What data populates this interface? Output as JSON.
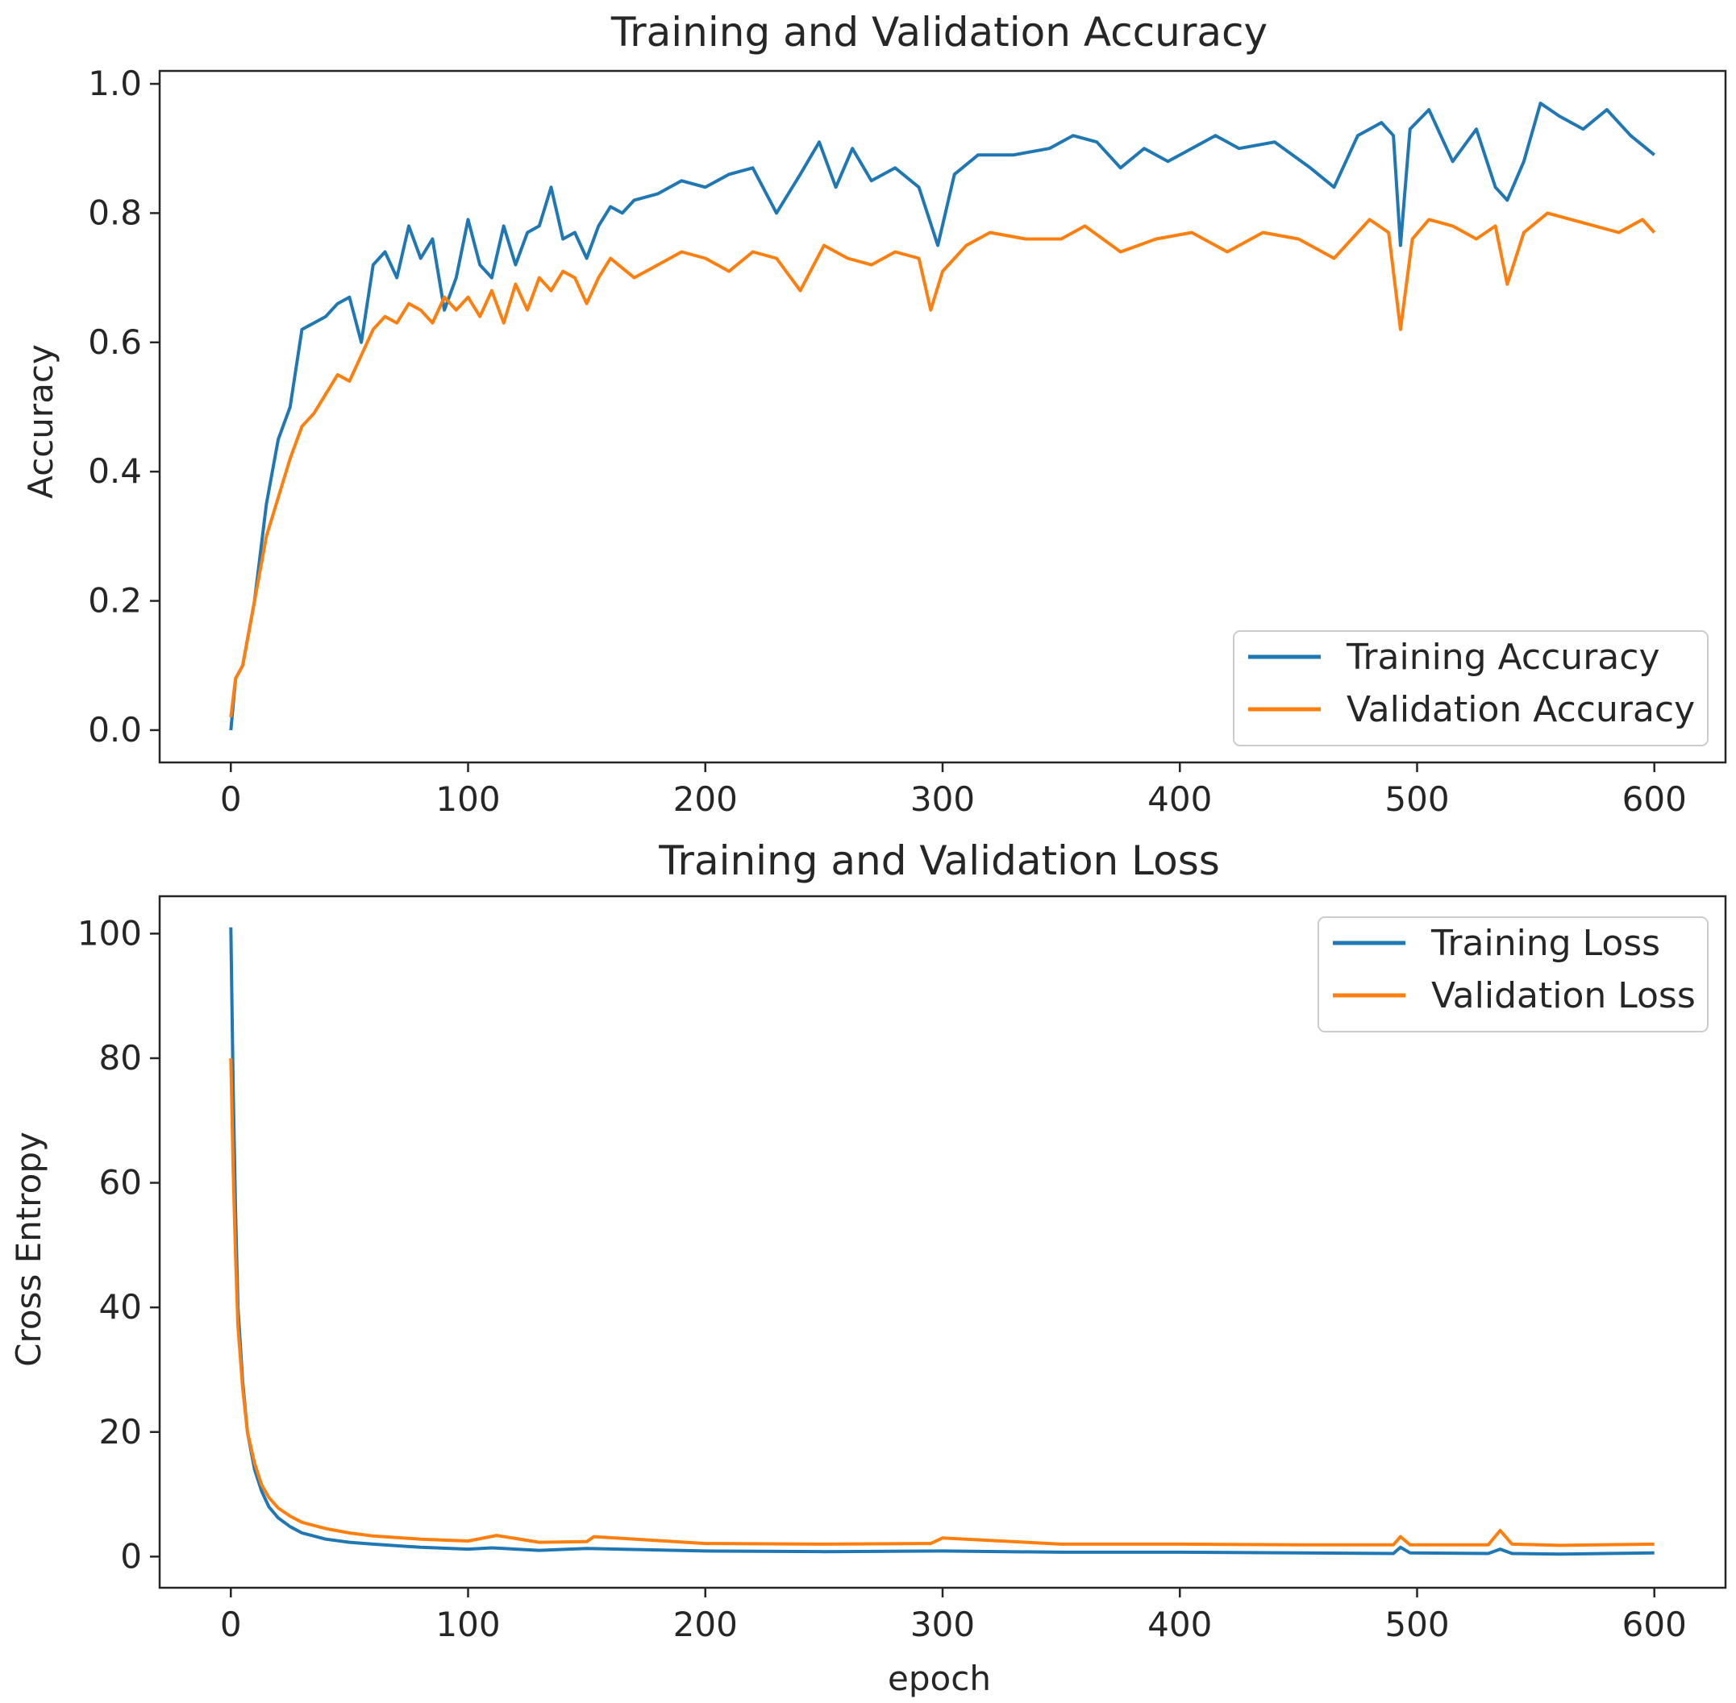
{
  "chart_data": [
    {
      "type": "line",
      "title": "Training and Validation Accuracy",
      "xlabel": "",
      "ylabel": "Accuracy",
      "xlim": [
        -30,
        630
      ],
      "ylim": [
        -0.05,
        1.02
      ],
      "xticks": [
        0,
        100,
        200,
        300,
        400,
        500,
        600
      ],
      "xtick_labels": [
        "0",
        "100",
        "200",
        "300",
        "400",
        "500",
        "600"
      ],
      "yticks": [
        0.0,
        0.2,
        0.4,
        0.6,
        0.8,
        1.0
      ],
      "ytick_labels": [
        "0.0",
        "0.2",
        "0.4",
        "0.6",
        "0.8",
        "1.0"
      ],
      "grid": false,
      "legend_position": "lower-right",
      "series": [
        {
          "name": "Training Accuracy",
          "color": "#1f77b4",
          "x": [
            0,
            2,
            5,
            10,
            15,
            20,
            25,
            30,
            35,
            40,
            45,
            50,
            55,
            60,
            65,
            70,
            75,
            80,
            85,
            90,
            95,
            100,
            105,
            110,
            115,
            120,
            125,
            130,
            135,
            140,
            145,
            150,
            155,
            160,
            165,
            170,
            180,
            190,
            200,
            210,
            220,
            230,
            240,
            248,
            255,
            262,
            270,
            280,
            290,
            298,
            305,
            315,
            330,
            345,
            355,
            365,
            375,
            385,
            395,
            405,
            415,
            425,
            440,
            455,
            465,
            475,
            485,
            490,
            493,
            497,
            505,
            515,
            525,
            533,
            538,
            545,
            552,
            560,
            570,
            580,
            590,
            600
          ],
          "values": [
            0.0,
            0.08,
            0.1,
            0.2,
            0.35,
            0.45,
            0.5,
            0.62,
            0.63,
            0.64,
            0.66,
            0.67,
            0.6,
            0.72,
            0.74,
            0.7,
            0.78,
            0.73,
            0.76,
            0.65,
            0.7,
            0.79,
            0.72,
            0.7,
            0.78,
            0.72,
            0.77,
            0.78,
            0.84,
            0.76,
            0.77,
            0.73,
            0.78,
            0.81,
            0.8,
            0.82,
            0.83,
            0.85,
            0.84,
            0.86,
            0.87,
            0.8,
            0.86,
            0.91,
            0.84,
            0.9,
            0.85,
            0.87,
            0.84,
            0.75,
            0.86,
            0.89,
            0.89,
            0.9,
            0.92,
            0.91,
            0.87,
            0.9,
            0.88,
            0.9,
            0.92,
            0.9,
            0.91,
            0.87,
            0.84,
            0.92,
            0.94,
            0.92,
            0.75,
            0.93,
            0.96,
            0.88,
            0.93,
            0.84,
            0.82,
            0.88,
            0.97,
            0.95,
            0.93,
            0.96,
            0.92,
            0.89
          ]
        },
        {
          "name": "Validation Accuracy",
          "color": "#ff7f0e",
          "x": [
            0,
            2,
            5,
            10,
            15,
            20,
            25,
            30,
            35,
            40,
            45,
            50,
            55,
            60,
            65,
            70,
            75,
            80,
            85,
            90,
            95,
            100,
            105,
            110,
            115,
            120,
            125,
            130,
            135,
            140,
            145,
            150,
            155,
            160,
            170,
            180,
            190,
            200,
            210,
            220,
            230,
            240,
            250,
            260,
            270,
            280,
            290,
            295,
            300,
            310,
            320,
            335,
            350,
            360,
            375,
            390,
            405,
            420,
            435,
            450,
            465,
            480,
            488,
            493,
            498,
            505,
            515,
            525,
            533,
            538,
            545,
            555,
            565,
            575,
            585,
            595,
            600
          ],
          "values": [
            0.02,
            0.08,
            0.1,
            0.2,
            0.3,
            0.36,
            0.42,
            0.47,
            0.49,
            0.52,
            0.55,
            0.54,
            0.58,
            0.62,
            0.64,
            0.63,
            0.66,
            0.65,
            0.63,
            0.67,
            0.65,
            0.67,
            0.64,
            0.68,
            0.63,
            0.69,
            0.65,
            0.7,
            0.68,
            0.71,
            0.7,
            0.66,
            0.7,
            0.73,
            0.7,
            0.72,
            0.74,
            0.73,
            0.71,
            0.74,
            0.73,
            0.68,
            0.75,
            0.73,
            0.72,
            0.74,
            0.73,
            0.65,
            0.71,
            0.75,
            0.77,
            0.76,
            0.76,
            0.78,
            0.74,
            0.76,
            0.77,
            0.74,
            0.77,
            0.76,
            0.73,
            0.79,
            0.77,
            0.62,
            0.76,
            0.79,
            0.78,
            0.76,
            0.78,
            0.69,
            0.77,
            0.8,
            0.79,
            0.78,
            0.77,
            0.79,
            0.77
          ]
        }
      ]
    },
    {
      "type": "line",
      "title": "Training and Validation Loss",
      "xlabel": "epoch",
      "ylabel": "Cross Entropy",
      "xlim": [
        -30,
        630
      ],
      "ylim": [
        -5,
        106
      ],
      "xticks": [
        0,
        100,
        200,
        300,
        400,
        500,
        600
      ],
      "xtick_labels": [
        "0",
        "100",
        "200",
        "300",
        "400",
        "500",
        "600"
      ],
      "yticks": [
        0,
        20,
        40,
        60,
        80,
        100
      ],
      "ytick_labels": [
        "0",
        "20",
        "40",
        "60",
        "80",
        "100"
      ],
      "grid": false,
      "legend_position": "upper-right",
      "series": [
        {
          "name": "Training Loss",
          "color": "#1f77b4",
          "x": [
            0,
            1,
            2,
            3,
            5,
            7,
            10,
            13,
            16,
            20,
            25,
            30,
            40,
            50,
            60,
            80,
            100,
            110,
            130,
            150,
            200,
            250,
            300,
            350,
            400,
            450,
            490,
            493,
            497,
            530,
            535,
            540,
            560,
            600
          ],
          "values": [
            101,
            75,
            55,
            40,
            28,
            20,
            14,
            10.5,
            8,
            6.2,
            4.8,
            3.8,
            2.8,
            2.3,
            2.0,
            1.5,
            1.2,
            1.4,
            1.0,
            1.3,
            0.9,
            0.8,
            0.9,
            0.7,
            0.7,
            0.6,
            0.5,
            1.5,
            0.6,
            0.5,
            1.2,
            0.5,
            0.4,
            0.6
          ]
        },
        {
          "name": "Validation Loss",
          "color": "#ff7f0e",
          "x": [
            0,
            1,
            2,
            3,
            5,
            7,
            10,
            13,
            16,
            20,
            25,
            30,
            40,
            50,
            60,
            80,
            100,
            112,
            130,
            150,
            153,
            200,
            250,
            295,
            300,
            350,
            400,
            450,
            490,
            493,
            497,
            530,
            535,
            540,
            560,
            600
          ],
          "values": [
            80,
            62,
            48,
            37,
            27,
            20,
            15,
            11.5,
            9.5,
            7.8,
            6.5,
            5.5,
            4.5,
            3.8,
            3.3,
            2.8,
            2.5,
            3.4,
            2.3,
            2.4,
            3.2,
            2.1,
            2.0,
            2.1,
            3.0,
            2.0,
            2.0,
            1.9,
            1.9,
            3.2,
            1.9,
            1.9,
            4.2,
            2.0,
            1.8,
            2.0
          ]
        }
      ]
    }
  ]
}
